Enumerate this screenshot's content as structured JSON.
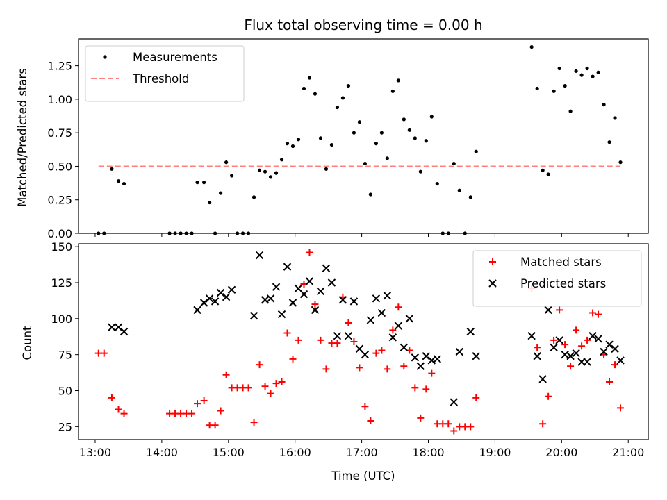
{
  "chart_data": [
    {
      "type": "scatter",
      "title": "Flux total observing time = 0.00 h",
      "xlabel": "",
      "ylabel": "Matched/Predicted stars",
      "ylim": [
        0,
        1.45
      ],
      "xlim": [
        "12:45",
        "21:18"
      ],
      "yticks": [
        "0.00",
        "0.25",
        "0.50",
        "0.75",
        "1.00",
        "1.25"
      ],
      "legend_position": "top-left",
      "series": [
        {
          "name": "Measurements",
          "color": "#000000",
          "marker": "dot",
          "points": [
            [
              "13:03",
              0.0
            ],
            [
              "13:08",
              0.0
            ],
            [
              "13:15",
              0.48
            ],
            [
              "13:21",
              0.39
            ],
            [
              "13:26",
              0.37
            ],
            [
              "14:07",
              0.0
            ],
            [
              "14:12",
              0.0
            ],
            [
              "14:17",
              0.0
            ],
            [
              "14:22",
              0.0
            ],
            [
              "14:27",
              0.0
            ],
            [
              "14:32",
              0.38
            ],
            [
              "14:38",
              0.38
            ],
            [
              "14:43",
              0.23
            ],
            [
              "14:48",
              0.0
            ],
            [
              "14:53",
              0.3
            ],
            [
              "14:58",
              0.53
            ],
            [
              "15:03",
              0.43
            ],
            [
              "15:08",
              0.0
            ],
            [
              "15:13",
              0.0
            ],
            [
              "15:18",
              0.0
            ],
            [
              "15:23",
              0.27
            ],
            [
              "15:28",
              0.47
            ],
            [
              "15:33",
              0.46
            ],
            [
              "15:38",
              0.42
            ],
            [
              "15:43",
              0.45
            ],
            [
              "15:48",
              0.55
            ],
            [
              "15:53",
              0.67
            ],
            [
              "15:58",
              0.65
            ],
            [
              "16:03",
              0.7
            ],
            [
              "16:08",
              1.08
            ],
            [
              "16:13",
              1.16
            ],
            [
              "16:18",
              1.04
            ],
            [
              "16:23",
              0.71
            ],
            [
              "16:28",
              0.48
            ],
            [
              "16:33",
              0.66
            ],
            [
              "16:38",
              0.94
            ],
            [
              "16:43",
              1.01
            ],
            [
              "16:48",
              1.1
            ],
            [
              "16:53",
              0.75
            ],
            [
              "16:58",
              0.83
            ],
            [
              "17:03",
              0.52
            ],
            [
              "17:08",
              0.29
            ],
            [
              "17:13",
              0.67
            ],
            [
              "17:18",
              0.75
            ],
            [
              "17:23",
              0.56
            ],
            [
              "17:28",
              1.06
            ],
            [
              "17:33",
              1.14
            ],
            [
              "17:38",
              0.85
            ],
            [
              "17:43",
              0.77
            ],
            [
              "17:48",
              0.71
            ],
            [
              "17:53",
              0.46
            ],
            [
              "17:58",
              0.69
            ],
            [
              "18:03",
              0.87
            ],
            [
              "18:08",
              0.37
            ],
            [
              "18:13",
              0.0
            ],
            [
              "18:18",
              0.0
            ],
            [
              "18:23",
              0.52
            ],
            [
              "18:28",
              0.32
            ],
            [
              "18:33",
              0.0
            ],
            [
              "18:38",
              0.27
            ],
            [
              "18:43",
              0.61
            ],
            [
              "19:33",
              1.39
            ],
            [
              "19:38",
              1.08
            ],
            [
              "19:43",
              0.47
            ],
            [
              "19:48",
              0.44
            ],
            [
              "19:53",
              1.06
            ],
            [
              "19:58",
              1.23
            ],
            [
              "20:03",
              1.1
            ],
            [
              "20:08",
              0.91
            ],
            [
              "20:13",
              1.21
            ],
            [
              "20:18",
              1.18
            ],
            [
              "20:23",
              1.23
            ],
            [
              "20:28",
              1.17
            ],
            [
              "20:33",
              1.2
            ],
            [
              "20:38",
              0.96
            ],
            [
              "20:43",
              0.68
            ],
            [
              "20:48",
              0.86
            ],
            [
              "20:53",
              0.53
            ]
          ]
        },
        {
          "name": "Threshold",
          "color": "#ff7f7f",
          "style": "dashed",
          "points": [
            [
              "13:03",
              0.5
            ],
            [
              "20:53",
              0.5
            ]
          ]
        }
      ]
    },
    {
      "type": "scatter",
      "title": "",
      "xlabel": "Time (UTC)",
      "ylabel": "Count",
      "ylim": [
        16,
        152
      ],
      "xlim": [
        "12:45",
        "21:18"
      ],
      "xticks": [
        "13:00",
        "14:00",
        "15:00",
        "16:00",
        "17:00",
        "18:00",
        "19:00",
        "20:00",
        "21:00"
      ],
      "yticks": [
        "25",
        "50",
        "75",
        "100",
        "125",
        "150"
      ],
      "legend_position": "top-right",
      "series": [
        {
          "name": "Matched stars",
          "color": "#ff0000",
          "marker": "plus",
          "points": [
            [
              "13:03",
              76
            ],
            [
              "13:08",
              76
            ],
            [
              "13:15",
              45
            ],
            [
              "13:21",
              37
            ],
            [
              "13:26",
              34
            ],
            [
              "14:07",
              34
            ],
            [
              "14:12",
              34
            ],
            [
              "14:17",
              34
            ],
            [
              "14:22",
              34
            ],
            [
              "14:27",
              34
            ],
            [
              "14:32",
              41
            ],
            [
              "14:38",
              43
            ],
            [
              "14:43",
              26
            ],
            [
              "14:48",
              26
            ],
            [
              "14:53",
              36
            ],
            [
              "14:58",
              61
            ],
            [
              "15:03",
              52
            ],
            [
              "15:08",
              52
            ],
            [
              "15:13",
              52
            ],
            [
              "15:18",
              52
            ],
            [
              "15:23",
              28
            ],
            [
              "15:28",
              68
            ],
            [
              "15:33",
              53
            ],
            [
              "15:38",
              48
            ],
            [
              "15:43",
              55
            ],
            [
              "15:48",
              56
            ],
            [
              "15:53",
              90
            ],
            [
              "15:58",
              72
            ],
            [
              "16:03",
              85
            ],
            [
              "16:08",
              124
            ],
            [
              "16:13",
              146
            ],
            [
              "16:18",
              110
            ],
            [
              "16:23",
              85
            ],
            [
              "16:28",
              65
            ],
            [
              "16:33",
              83
            ],
            [
              "16:38",
              83
            ],
            [
              "16:43",
              115
            ],
            [
              "16:48",
              97
            ],
            [
              "16:53",
              84
            ],
            [
              "16:58",
              66
            ],
            [
              "17:03",
              39
            ],
            [
              "17:08",
              29
            ],
            [
              "17:13",
              76
            ],
            [
              "17:18",
              78
            ],
            [
              "17:23",
              65
            ],
            [
              "17:28",
              92
            ],
            [
              "17:33",
              108
            ],
            [
              "17:38",
              67
            ],
            [
              "17:43",
              78
            ],
            [
              "17:48",
              52
            ],
            [
              "17:53",
              31
            ],
            [
              "17:58",
              51
            ],
            [
              "18:03",
              62
            ],
            [
              "18:08",
              27
            ],
            [
              "18:13",
              27
            ],
            [
              "18:18",
              27
            ],
            [
              "18:23",
              22
            ],
            [
              "18:28",
              25
            ],
            [
              "18:33",
              25
            ],
            [
              "18:38",
              25
            ],
            [
              "18:43",
              45
            ],
            [
              "19:33",
              121
            ],
            [
              "19:38",
              80
            ],
            [
              "19:43",
              27
            ],
            [
              "19:48",
              46
            ],
            [
              "19:53",
              85
            ],
            [
              "19:58",
              106
            ],
            [
              "20:03",
              82
            ],
            [
              "20:08",
              67
            ],
            [
              "20:13",
              92
            ],
            [
              "20:18",
              81
            ],
            [
              "20:23",
              85
            ],
            [
              "20:28",
              104
            ],
            [
              "20:33",
              103
            ],
            [
              "20:38",
              75
            ],
            [
              "20:43",
              56
            ],
            [
              "20:48",
              68
            ],
            [
              "20:53",
              38
            ]
          ]
        },
        {
          "name": "Predicted stars",
          "color": "#000000",
          "marker": "x",
          "points": [
            [
              "13:15",
              94
            ],
            [
              "13:21",
              94
            ],
            [
              "13:26",
              91
            ],
            [
              "14:32",
              106
            ],
            [
              "14:38",
              111
            ],
            [
              "14:43",
              114
            ],
            [
              "14:48",
              112
            ],
            [
              "14:53",
              118
            ],
            [
              "14:58",
              115
            ],
            [
              "15:03",
              120
            ],
            [
              "15:23",
              102
            ],
            [
              "15:28",
              144
            ],
            [
              "15:33",
              113
            ],
            [
              "15:38",
              114
            ],
            [
              "15:43",
              122
            ],
            [
              "15:48",
              103
            ],
            [
              "15:53",
              136
            ],
            [
              "15:58",
              111
            ],
            [
              "16:03",
              121
            ],
            [
              "16:08",
              117
            ],
            [
              "16:13",
              126
            ],
            [
              "16:18",
              106
            ],
            [
              "16:23",
              119
            ],
            [
              "16:28",
              135
            ],
            [
              "16:33",
              125
            ],
            [
              "16:38",
              88
            ],
            [
              "16:43",
              113
            ],
            [
              "16:48",
              88
            ],
            [
              "16:53",
              112
            ],
            [
              "16:58",
              79
            ],
            [
              "17:03",
              75
            ],
            [
              "17:08",
              99
            ],
            [
              "17:13",
              114
            ],
            [
              "17:18",
              104
            ],
            [
              "17:23",
              116
            ],
            [
              "17:28",
              87
            ],
            [
              "17:33",
              95
            ],
            [
              "17:38",
              80
            ],
            [
              "17:43",
              100
            ],
            [
              "17:48",
              73
            ],
            [
              "17:53",
              67
            ],
            [
              "17:58",
              74
            ],
            [
              "18:03",
              71
            ],
            [
              "18:08",
              72
            ],
            [
              "18:23",
              42
            ],
            [
              "18:28",
              77
            ],
            [
              "18:38",
              91
            ],
            [
              "18:43",
              74
            ],
            [
              "19:33",
              88
            ],
            [
              "19:38",
              74
            ],
            [
              "19:43",
              58
            ],
            [
              "19:48",
              106
            ],
            [
              "19:53",
              80
            ],
            [
              "19:58",
              85
            ],
            [
              "20:03",
              75
            ],
            [
              "20:08",
              74
            ],
            [
              "20:13",
              76
            ],
            [
              "20:18",
              70
            ],
            [
              "20:23",
              70
            ],
            [
              "20:28",
              88
            ],
            [
              "20:33",
              86
            ],
            [
              "20:38",
              77
            ],
            [
              "20:43",
              82
            ],
            [
              "20:48",
              79
            ],
            [
              "20:53",
              71
            ]
          ]
        }
      ]
    }
  ]
}
